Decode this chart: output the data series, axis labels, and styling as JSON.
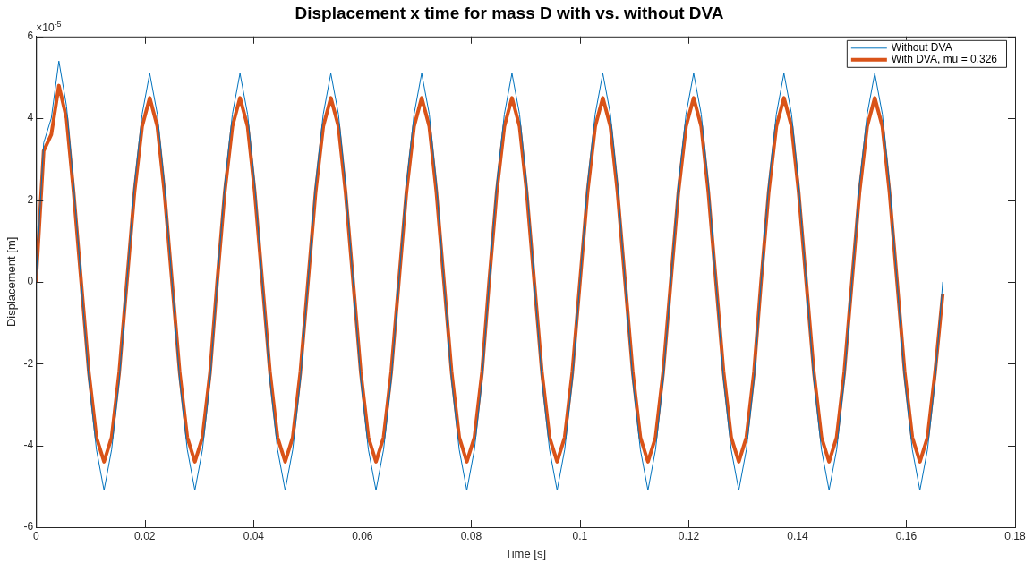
{
  "chart_data": {
    "type": "line",
    "title": "Displacement x time for mass D with vs. without DVA",
    "xlabel": "Time [s]",
    "ylabel": "Displacement [m]",
    "annotations": [
      "×10$^{-5}$"
    ],
    "x": [
      0,
      0.0014,
      0.0028,
      0.0042,
      0.0056,
      0.0069,
      0.0083,
      0.0097,
      0.0111,
      0.0125,
      0.0139,
      0.0153,
      0.0167,
      0.0181,
      0.0195,
      0.0209,
      0.0223,
      0.0236,
      0.025,
      0.0264,
      0.0278,
      0.0292,
      0.0306,
      0.032,
      0.0333,
      0.0347,
      0.0361,
      0.0375,
      0.0389,
      0.0402,
      0.0416,
      0.043,
      0.0444,
      0.0458,
      0.0472,
      0.0486,
      0.05,
      0.0514,
      0.0528,
      0.0542,
      0.0556,
      0.0569,
      0.0583,
      0.0597,
      0.0611,
      0.0625,
      0.0639,
      0.0653,
      0.0667,
      0.0681,
      0.0695,
      0.0709,
      0.0723,
      0.0736,
      0.075,
      0.0764,
      0.0778,
      0.0792,
      0.0806,
      0.082,
      0.0833,
      0.0847,
      0.0861,
      0.0875,
      0.0889,
      0.0902,
      0.0916,
      0.093,
      0.0944,
      0.0958,
      0.0972,
      0.0986,
      0.1,
      0.1014,
      0.1028,
      0.1042,
      0.1056,
      0.1069,
      0.1083,
      0.1097,
      0.1111,
      0.1125,
      0.1139,
      0.1153,
      0.1167,
      0.1181,
      0.1195,
      0.1209,
      0.1223,
      0.1236,
      0.125,
      0.1264,
      0.1278,
      0.1292,
      0.1306,
      0.132,
      0.1333,
      0.1347,
      0.1361,
      0.1375,
      0.1389,
      0.1402,
      0.1416,
      0.143,
      0.1444,
      0.1458,
      0.1472,
      0.1486,
      0.15,
      0.1514,
      0.1528,
      0.1542,
      0.1556,
      0.1569,
      0.1583,
      0.1597,
      0.1611,
      0.1625,
      0.1639,
      0.1653,
      0.1667
    ],
    "series": [
      {
        "name": "Without DVA",
        "color": "#0072bd",
        "values": [
          0,
          3.4,
          4.0,
          5.4,
          4.3,
          2.4,
          0,
          -2.4,
          -4.1,
          -5.1,
          -4.1,
          -2.4,
          0,
          2.4,
          4.1,
          5.1,
          4.1,
          2.4,
          0,
          -2.4,
          -4.1,
          -5.1,
          -4.1,
          -2.4,
          0,
          2.4,
          4.1,
          5.1,
          4.1,
          2.4,
          0,
          -2.4,
          -4.1,
          -5.1,
          -4.1,
          -2.4,
          0,
          2.4,
          4.1,
          5.1,
          4.1,
          2.4,
          0,
          -2.4,
          -4.1,
          -5.1,
          -4.1,
          -2.4,
          0,
          2.4,
          4.1,
          5.1,
          4.1,
          2.4,
          0,
          -2.4,
          -4.1,
          -5.1,
          -4.1,
          -2.4,
          0,
          2.4,
          4.1,
          5.1,
          4.1,
          2.4,
          0,
          -2.4,
          -4.1,
          -5.1,
          -4.1,
          -2.4,
          0,
          2.4,
          4.1,
          5.1,
          4.1,
          2.4,
          0,
          -2.4,
          -4.1,
          -5.1,
          -4.1,
          -2.4,
          0,
          2.4,
          4.1,
          5.1,
          4.1,
          2.4,
          0,
          -2.4,
          -4.1,
          -5.1,
          -4.1,
          -2.4,
          0,
          2.4,
          4.1,
          5.1,
          4.1,
          2.4,
          0,
          -2.4,
          -4.1,
          -5.1,
          -4.1,
          -2.4,
          0,
          2.4,
          4.1,
          5.1,
          4.1,
          2.4,
          0,
          -2.4,
          -4.1,
          -5.1,
          -4.1,
          -2.4,
          0
        ]
      },
      {
        "name": "With DVA, mu = 0.326",
        "color": "#d95319",
        "values": [
          0,
          3.2,
          3.6,
          4.8,
          4.0,
          2.2,
          0,
          -2.2,
          -3.8,
          -4.4,
          -3.8,
          -2.2,
          0,
          2.2,
          3.8,
          4.5,
          3.8,
          2.2,
          0,
          -2.2,
          -3.8,
          -4.4,
          -3.8,
          -2.2,
          0,
          2.2,
          3.8,
          4.5,
          3.8,
          2.2,
          0,
          -2.2,
          -3.8,
          -4.4,
          -3.8,
          -2.2,
          0,
          2.2,
          3.8,
          4.5,
          3.8,
          2.2,
          0,
          -2.2,
          -3.8,
          -4.4,
          -3.8,
          -2.2,
          0,
          2.2,
          3.8,
          4.5,
          3.8,
          2.2,
          0,
          -2.2,
          -3.8,
          -4.4,
          -3.8,
          -2.2,
          0,
          2.2,
          3.8,
          4.5,
          3.8,
          2.2,
          0,
          -2.2,
          -3.8,
          -4.4,
          -3.8,
          -2.2,
          0,
          2.2,
          3.8,
          4.5,
          3.8,
          2.2,
          0,
          -2.2,
          -3.8,
          -4.4,
          -3.8,
          -2.2,
          0,
          2.2,
          3.8,
          4.5,
          3.8,
          2.2,
          0,
          -2.2,
          -3.8,
          -4.4,
          -3.8,
          -2.2,
          0,
          2.2,
          3.8,
          4.5,
          3.8,
          2.2,
          0,
          -2.2,
          -3.8,
          -4.4,
          -3.8,
          -2.2,
          0,
          2.2,
          3.8,
          4.5,
          3.8,
          2.2,
          0,
          -2.2,
          -3.8,
          -4.4,
          -3.8,
          -2.2,
          -0.3
        ]
      }
    ],
    "xlim": [
      0,
      0.18
    ],
    "xticks": [
      0,
      0.02,
      0.04,
      0.06,
      0.08,
      0.1,
      0.12,
      0.14,
      0.16,
      0.18
    ],
    "ylim": [
      -6,
      6
    ],
    "yticks": [
      -6,
      -4,
      -2,
      0,
      2,
      4,
      6
    ],
    "legend": "top right",
    "marker": "none",
    "line_style": "solid"
  }
}
